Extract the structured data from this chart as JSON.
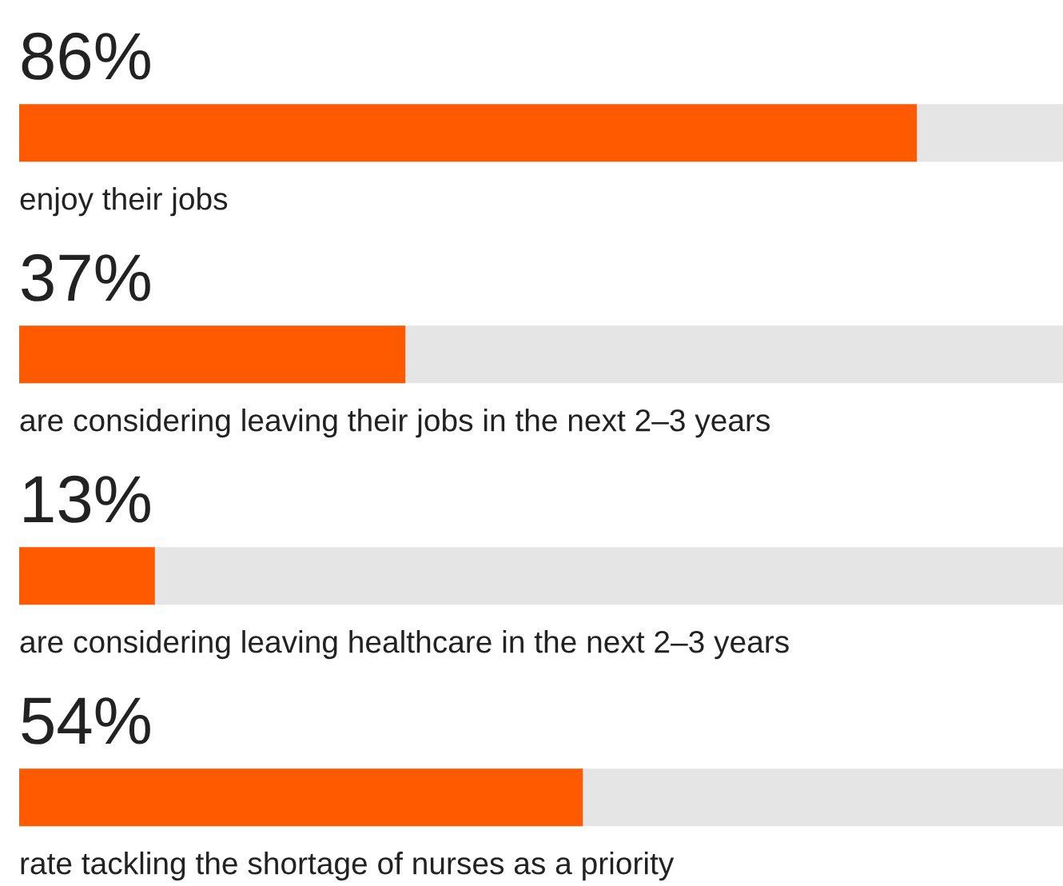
{
  "chart_data": {
    "type": "bar",
    "orientation": "horizontal",
    "categories": [
      "enjoy their jobs",
      "are considering leaving their jobs in the next 2–3 years",
      "are considering leaving healthcare in the next 2–3 years",
      "rate tackling the shortage of nurses as a priority"
    ],
    "values": [
      86,
      37,
      13,
      54
    ],
    "value_labels": [
      "86%",
      "37%",
      "13%",
      "54%"
    ],
    "color": "#ff5a00",
    "xlim": [
      0,
      100
    ],
    "tick_labels": false
  }
}
